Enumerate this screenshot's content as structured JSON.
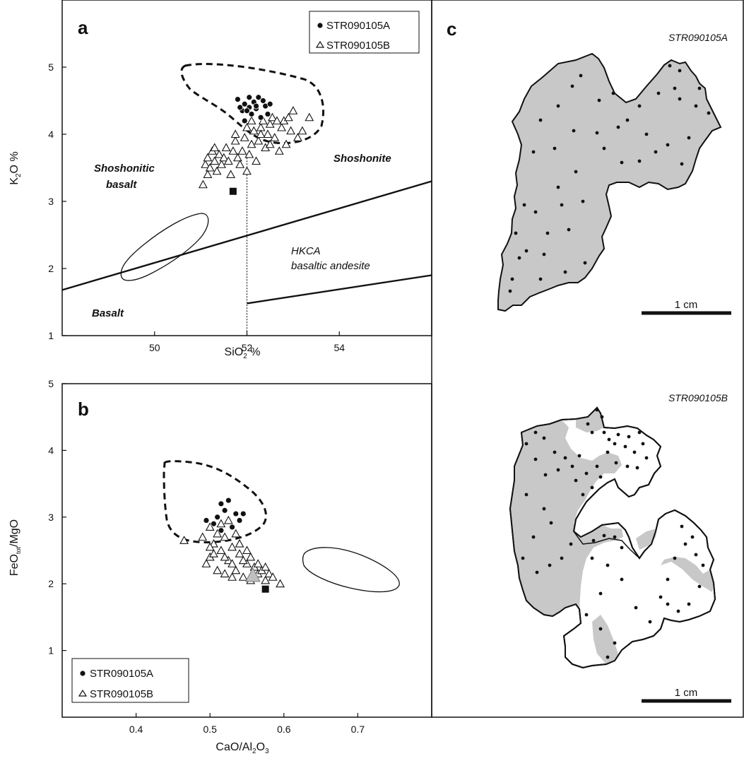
{
  "chart_data": [
    {
      "panel": "a",
      "type": "scatter",
      "xlabel": "SiO2 %",
      "ylabel": "K2O %",
      "xlim": [
        48,
        56
      ],
      "ylim": [
        1,
        6
      ],
      "xticks": [
        50,
        52,
        54
      ],
      "yticks": [
        1,
        2,
        3,
        4,
        5
      ],
      "legend": {
        "placement": "top-right",
        "entries": [
          "STR090105A",
          "STR090105B"
        ]
      },
      "field_labels": {
        "shoshonitic_basalt_1": "Shoshonitic",
        "shoshonitic_basalt_2": "basalt",
        "shoshonite": "Shoshonite",
        "hkca_1": "HKCA",
        "hkca_2": "basaltic andesite",
        "basalt": "Basalt"
      },
      "boundary_lines": [
        [
          [
            48,
            1.68
          ],
          [
            56,
            3.3
          ]
        ],
        [
          [
            52,
            1.48
          ],
          [
            56,
            1.9
          ]
        ]
      ],
      "divider_x": 52,
      "series": [
        {
          "name": "STR090105A",
          "marker": "circle",
          "points": [
            [
              51.8,
              4.52
            ],
            [
              51.95,
              4.45
            ],
            [
              52.05,
              4.55
            ],
            [
              52.15,
              4.48
            ],
            [
              52.25,
              4.55
            ],
            [
              52.35,
              4.5
            ],
            [
              52.05,
              4.4
            ],
            [
              51.9,
              4.35
            ],
            [
              52.2,
              4.38
            ],
            [
              52.4,
              4.42
            ],
            [
              52.1,
              4.3
            ],
            [
              52.3,
              4.25
            ],
            [
              51.95,
              4.2
            ],
            [
              52.5,
              4.45
            ],
            [
              52.0,
              4.35
            ],
            [
              52.2,
              4.42
            ],
            [
              51.85,
              4.4
            ],
            [
              52.45,
              4.3
            ]
          ]
        },
        {
          "name": "STR090105B",
          "marker": "triangle",
          "points": [
            [
              51.05,
              3.25
            ],
            [
              51.1,
              3.55
            ],
            [
              51.15,
              3.65
            ],
            [
              51.2,
              3.5
            ],
            [
              51.25,
              3.75
            ],
            [
              51.3,
              3.6
            ],
            [
              51.35,
              3.45
            ],
            [
              51.4,
              3.7
            ],
            [
              51.45,
              3.55
            ],
            [
              51.5,
              3.65
            ],
            [
              51.6,
              3.6
            ],
            [
              51.7,
              3.75
            ],
            [
              51.75,
              3.9
            ],
            [
              51.8,
              3.65
            ],
            [
              51.85,
              3.55
            ],
            [
              51.9,
              3.75
            ],
            [
              51.95,
              3.95
            ],
            [
              52.0,
              3.45
            ],
            [
              52.05,
              3.7
            ],
            [
              52.1,
              3.85
            ],
            [
              52.15,
              4.05
            ],
            [
              52.2,
              3.6
            ],
            [
              52.25,
              3.9
            ],
            [
              52.3,
              4.1
            ],
            [
              52.35,
              4.2
            ],
            [
              52.4,
              3.8
            ],
            [
              52.45,
              4.0
            ],
            [
              52.5,
              4.15
            ],
            [
              52.55,
              4.25
            ],
            [
              52.6,
              3.95
            ],
            [
              52.65,
              4.2
            ],
            [
              52.7,
              3.75
            ],
            [
              52.75,
              4.1
            ],
            [
              52.8,
              4.2
            ],
            [
              52.85,
              3.85
            ],
            [
              52.9,
              4.25
            ],
            [
              52.95,
              4.05
            ],
            [
              53.0,
              4.35
            ],
            [
              53.1,
              3.95
            ],
            [
              53.2,
              4.05
            ],
            [
              53.35,
              4.25
            ],
            [
              51.55,
              3.8
            ],
            [
              51.65,
              3.4
            ],
            [
              51.75,
              4.0
            ],
            [
              52.0,
              4.1
            ],
            [
              52.1,
              4.2
            ],
            [
              52.3,
              4.0
            ],
            [
              52.5,
              3.85
            ],
            [
              51.3,
              3.8
            ],
            [
              51.15,
              3.4
            ]
          ]
        }
      ],
      "extra_marks": {
        "black_square": [
          51.7,
          3.15
        ]
      }
    },
    {
      "panel": "b",
      "type": "scatter",
      "xlabel": "CaO/Al2O3",
      "ylabel": "FeOtot/MgO",
      "xlim": [
        0.3,
        0.8
      ],
      "ylim": [
        0,
        5
      ],
      "xticks": [
        0.4,
        0.5,
        0.6,
        0.7
      ],
      "yticks": [
        1,
        2,
        3,
        4,
        5
      ],
      "legend": {
        "placement": "bottom-left",
        "entries": [
          "STR090105A",
          "STR090105B"
        ]
      },
      "series": [
        {
          "name": "STR090105A",
          "marker": "circle",
          "points": [
            [
              0.515,
              3.2
            ],
            [
              0.525,
              3.25
            ],
            [
              0.52,
              3.1
            ],
            [
              0.51,
              3.0
            ],
            [
              0.535,
              3.05
            ],
            [
              0.54,
              2.95
            ],
            [
              0.505,
              2.9
            ],
            [
              0.545,
              3.05
            ],
            [
              0.495,
              2.95
            ],
            [
              0.53,
              2.85
            ],
            [
              0.515,
              2.8
            ]
          ]
        },
        {
          "name": "STR090105B",
          "marker": "triangle",
          "points": [
            [
              0.465,
              2.65
            ],
            [
              0.49,
              2.7
            ],
            [
              0.5,
              2.85
            ],
            [
              0.505,
              2.6
            ],
            [
              0.51,
              2.75
            ],
            [
              0.515,
              2.5
            ],
            [
              0.52,
              2.7
            ],
            [
              0.525,
              2.35
            ],
            [
              0.53,
              2.55
            ],
            [
              0.535,
              2.2
            ],
            [
              0.54,
              2.45
            ],
            [
              0.545,
              2.1
            ],
            [
              0.55,
              2.3
            ],
            [
              0.555,
              2.05
            ],
            [
              0.56,
              2.25
            ],
            [
              0.565,
              2.15
            ],
            [
              0.57,
              2.2
            ],
            [
              0.575,
              2.05
            ],
            [
              0.58,
              2.15
            ],
            [
              0.585,
              2.1
            ],
            [
              0.595,
              2.0
            ],
            [
              0.5,
              2.4
            ],
            [
              0.51,
              2.2
            ],
            [
              0.52,
              2.15
            ],
            [
              0.53,
              2.3
            ],
            [
              0.545,
              2.35
            ],
            [
              0.555,
              2.4
            ],
            [
              0.565,
              2.3
            ],
            [
              0.575,
              2.25
            ],
            [
              0.495,
              2.3
            ],
            [
              0.505,
              2.45
            ],
            [
              0.515,
              2.9
            ],
            [
              0.525,
              2.95
            ],
            [
              0.535,
              2.75
            ],
            [
              0.54,
              2.6
            ],
            [
              0.5,
              2.55
            ],
            [
              0.55,
              2.5
            ],
            [
              0.56,
              2.1
            ],
            [
              0.52,
              2.4
            ],
            [
              0.53,
              2.1
            ]
          ]
        }
      ],
      "extra_marks": {
        "black_square": [
          0.575,
          1.92
        ],
        "grey_triangle": [
          0.558,
          2.13
        ]
      }
    }
  ],
  "panel_c": {
    "letter": "c",
    "sample_a": "STR090105A",
    "sample_b": "STR090105B",
    "scale_label_a": "1 cm",
    "scale_label_b": "1 cm"
  },
  "colors": {
    "fill_grey": "#c8c8c8",
    "ink": "#111111"
  }
}
